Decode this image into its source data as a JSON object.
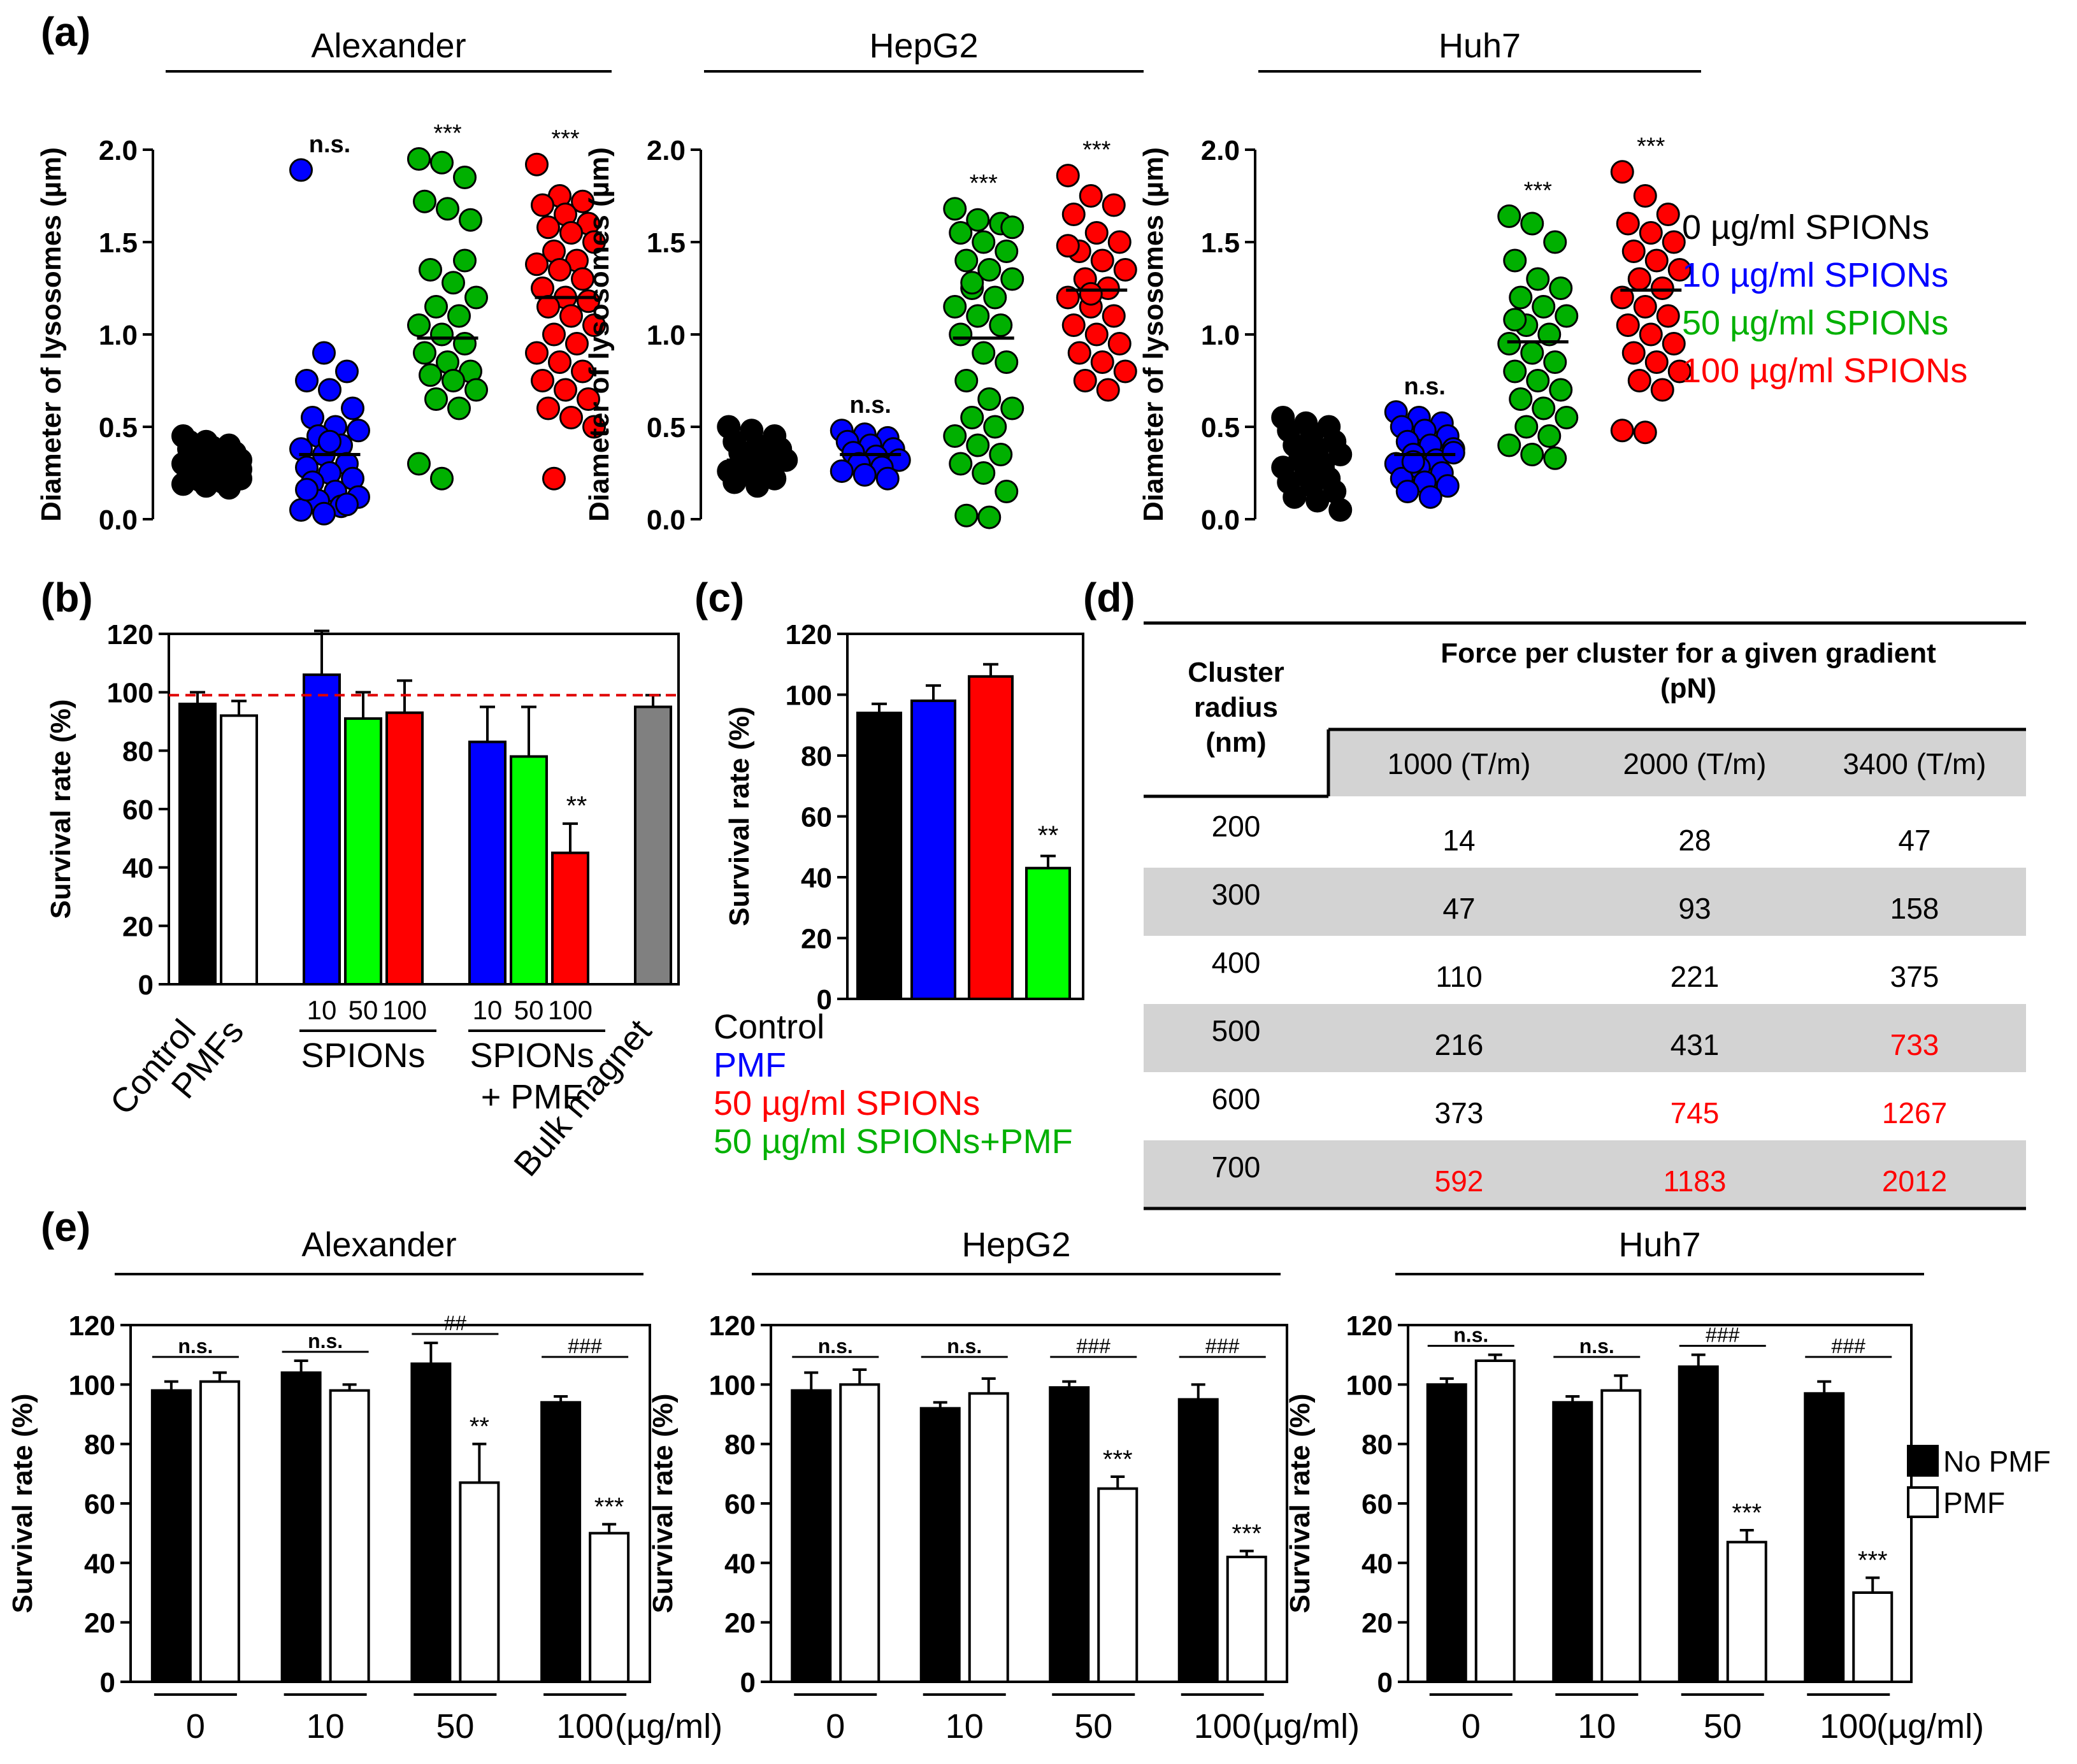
{
  "colors": {
    "c0": "#000000",
    "c10": "#0000ff",
    "c50": "#00b000",
    "c100": "#ff0000",
    "gray": "#808080",
    "green_bar": "#00ff00",
    "table_shade": "#d3d3d3"
  },
  "panel_labels": [
    "(a)",
    "(b)",
    "(c)",
    "(d)",
    "(e)"
  ],
  "chart_data": [
    {
      "id": "a",
      "type": "scatter",
      "ylabel": "Diameter of lysosomes (µm)",
      "ylim": [
        0,
        2.0
      ],
      "yticks": [
        "0.0",
        "0.5",
        "1.0",
        "1.5",
        "2.0"
      ],
      "legend": [
        "0 µg/ml SPIONs",
        "10 µg/ml SPIONs",
        "50 µg/ml SPIONs",
        "100 µg/ml SPIONs"
      ],
      "subplots": [
        {
          "title": "Alexander",
          "groups": [
            {
              "name": "0",
              "color": "#000000",
              "mean": 0.27,
              "sig": "",
              "values": [
                0.45,
                0.42,
                0.4,
                0.38,
                0.36,
                0.35,
                0.34,
                0.33,
                0.32,
                0.31,
                0.3,
                0.3,
                0.29,
                0.28,
                0.27,
                0.26,
                0.25,
                0.24,
                0.23,
                0.22,
                0.21,
                0.2,
                0.19,
                0.18,
                0.17,
                0.42,
                0.39,
                0.36,
                0.33,
                0.3,
                0.27,
                0.24
              ]
            },
            {
              "name": "10",
              "color": "#0000ff",
              "mean": 0.35,
              "sig": "n.s.",
              "values": [
                1.89,
                0.9,
                0.8,
                0.75,
                0.7,
                0.6,
                0.55,
                0.5,
                0.48,
                0.45,
                0.4,
                0.38,
                0.35,
                0.3,
                0.28,
                0.25,
                0.22,
                0.2,
                0.15,
                0.12,
                0.1,
                0.07,
                0.05,
                0.03,
                0.08,
                0.16,
                0.42
              ]
            },
            {
              "name": "50",
              "color": "#00b000",
              "mean": 0.98,
              "sig": "***",
              "values": [
                1.95,
                1.93,
                1.85,
                1.72,
                1.68,
                1.62,
                1.35,
                1.28,
                1.2,
                1.15,
                1.1,
                1.05,
                1.0,
                0.95,
                0.9,
                0.85,
                0.8,
                0.78,
                0.75,
                0.7,
                0.65,
                0.6,
                0.3,
                0.22,
                1.4
              ]
            },
            {
              "name": "100",
              "color": "#ff0000",
              "mean": 1.2,
              "sig": "***",
              "values": [
                1.92,
                1.75,
                1.72,
                1.7,
                1.65,
                1.6,
                1.58,
                1.55,
                1.5,
                1.45,
                1.4,
                1.38,
                1.35,
                1.3,
                1.25,
                1.2,
                1.18,
                1.15,
                1.1,
                1.05,
                1.0,
                0.95,
                0.9,
                0.85,
                0.8,
                0.75,
                0.7,
                0.65,
                0.6,
                0.55,
                0.5,
                0.22
              ]
            }
          ]
        },
        {
          "title": "HepG2",
          "groups": [
            {
              "name": "0",
              "color": "#000000",
              "mean": 0.32,
              "sig": "",
              "values": [
                0.5,
                0.48,
                0.45,
                0.42,
                0.4,
                0.38,
                0.36,
                0.34,
                0.32,
                0.3,
                0.28,
                0.26,
                0.24,
                0.22,
                0.2,
                0.18,
                0.35
              ]
            },
            {
              "name": "10",
              "color": "#0000ff",
              "mean": 0.35,
              "sig": "n.s.",
              "values": [
                0.48,
                0.46,
                0.44,
                0.42,
                0.4,
                0.38,
                0.36,
                0.34,
                0.32,
                0.3,
                0.28,
                0.26,
                0.24,
                0.22
              ]
            },
            {
              "name": "50",
              "color": "#00b000",
              "mean": 0.98,
              "sig": "***",
              "values": [
                1.68,
                1.62,
                1.6,
                1.55,
                1.5,
                1.45,
                1.4,
                1.35,
                1.3,
                1.25,
                1.2,
                1.15,
                1.1,
                1.05,
                1.0,
                0.9,
                0.85,
                0.75,
                0.65,
                0.6,
                0.55,
                0.5,
                0.45,
                0.4,
                0.35,
                0.3,
                0.25,
                0.15,
                0.02,
                0.01,
                1.58,
                1.28
              ]
            },
            {
              "name": "100",
              "color": "#ff0000",
              "mean": 1.24,
              "sig": "***",
              "values": [
                1.86,
                1.75,
                1.7,
                1.65,
                1.55,
                1.5,
                1.45,
                1.4,
                1.35,
                1.3,
                1.25,
                1.2,
                1.15,
                1.1,
                1.05,
                1.0,
                0.95,
                0.9,
                0.85,
                0.8,
                0.75,
                0.7,
                1.48,
                1.22
              ]
            }
          ]
        },
        {
          "title": "Huh7",
          "groups": [
            {
              "name": "0",
              "color": "#000000",
              "mean": 0.32,
              "sig": "",
              "values": [
                0.55,
                0.52,
                0.5,
                0.48,
                0.45,
                0.42,
                0.4,
                0.38,
                0.35,
                0.32,
                0.3,
                0.28,
                0.25,
                0.22,
                0.2,
                0.18,
                0.15,
                0.12,
                0.1,
                0.05,
                0.33,
                0.27
              ]
            },
            {
              "name": "10",
              "color": "#0000ff",
              "mean": 0.35,
              "sig": "n.s.",
              "values": [
                0.58,
                0.55,
                0.52,
                0.5,
                0.48,
                0.45,
                0.42,
                0.4,
                0.38,
                0.35,
                0.32,
                0.3,
                0.28,
                0.25,
                0.22,
                0.2,
                0.18,
                0.15,
                0.12,
                0.36,
                0.31
              ]
            },
            {
              "name": "50",
              "color": "#00b000",
              "mean": 0.96,
              "sig": "***",
              "values": [
                1.64,
                1.6,
                1.5,
                1.4,
                1.3,
                1.25,
                1.2,
                1.15,
                1.1,
                1.05,
                1.0,
                0.95,
                0.9,
                0.85,
                0.8,
                0.75,
                0.7,
                0.65,
                0.6,
                0.55,
                0.5,
                0.45,
                0.4,
                0.35,
                0.33,
                1.08
              ]
            },
            {
              "name": "100",
              "color": "#ff0000",
              "mean": 1.24,
              "sig": "***",
              "values": [
                1.88,
                1.75,
                1.65,
                1.6,
                1.55,
                1.5,
                1.45,
                1.4,
                1.35,
                1.3,
                1.25,
                1.2,
                1.15,
                1.1,
                1.05,
                1.0,
                0.95,
                0.9,
                0.85,
                0.8,
                0.75,
                0.7,
                0.48,
                0.47
              ]
            }
          ]
        }
      ]
    },
    {
      "id": "b",
      "type": "bar",
      "ylabel": "Survival rate (%)",
      "ylim": [
        0,
        120
      ],
      "yticks": [
        "0",
        "20",
        "40",
        "60",
        "80",
        "100",
        "120"
      ],
      "reference_line": 99,
      "bars": [
        {
          "color": "#000000",
          "value": 96,
          "err": 4,
          "sig": ""
        },
        {
          "color": "#ffffff",
          "value": 92,
          "err": 5,
          "sig": ""
        },
        {
          "color": "#0000ff",
          "value": 106,
          "err": 15,
          "sig": ""
        },
        {
          "color": "#00ff00",
          "value": 91,
          "err": 9,
          "sig": ""
        },
        {
          "color": "#ff0000",
          "value": 93,
          "err": 11,
          "sig": ""
        },
        {
          "color": "#0000ff",
          "value": 83,
          "err": 12,
          "sig": ""
        },
        {
          "color": "#00ff00",
          "value": 78,
          "err": 17,
          "sig": ""
        },
        {
          "color": "#ff0000",
          "value": 45,
          "err": 10,
          "sig": "**"
        },
        {
          "color": "#808080",
          "value": 95,
          "err": 4,
          "sig": ""
        }
      ],
      "conc_labels": [
        "10",
        "50",
        "100",
        "10",
        "50",
        "100"
      ],
      "category_labels": {
        "control": "Control",
        "pmfs": "PMFs",
        "spions": "SPIONs",
        "spions_pmf_1": "SPIONs",
        "spions_pmf_2": "+ PMF",
        "bulk": "Bulk magnet"
      }
    },
    {
      "id": "c",
      "type": "bar",
      "ylabel": "Survival rate (%)",
      "ylim": [
        0,
        120
      ],
      "yticks": [
        "0",
        "20",
        "40",
        "60",
        "80",
        "100",
        "120"
      ],
      "bars": [
        {
          "color": "#000000",
          "value": 94,
          "err": 3,
          "sig": ""
        },
        {
          "color": "#0000ff",
          "value": 98,
          "err": 5,
          "sig": ""
        },
        {
          "color": "#ff0000",
          "value": 106,
          "err": 4,
          "sig": ""
        },
        {
          "color": "#00ff00",
          "value": 43,
          "err": 4,
          "sig": "**"
        }
      ],
      "legend": [
        {
          "label": "Control",
          "color": "#000000"
        },
        {
          "label": "PMF",
          "color": "#0000ff"
        },
        {
          "label": "50 µg/ml SPIONs",
          "color": "#ff0000"
        },
        {
          "label": "50 µg/ml SPIONs+PMF",
          "color": "#00b000"
        }
      ]
    },
    {
      "id": "d",
      "type": "table",
      "header_col": [
        "Cluster",
        "radius",
        "(nm)"
      ],
      "header_main": [
        "Force per cluster for a given gradient",
        "(pN)"
      ],
      "subheaders": [
        "1000 (T/m)",
        "2000 (T/m)",
        "3400 (T/m)"
      ],
      "rows": [
        {
          "radius": "200",
          "values": [
            "14",
            "28",
            "47"
          ],
          "red": [
            false,
            false,
            false
          ],
          "shaded": false
        },
        {
          "radius": "300",
          "values": [
            "47",
            "93",
            "158"
          ],
          "red": [
            false,
            false,
            false
          ],
          "shaded": true
        },
        {
          "radius": "400",
          "values": [
            "110",
            "221",
            "375"
          ],
          "red": [
            false,
            false,
            false
          ],
          "shaded": false
        },
        {
          "radius": "500",
          "values": [
            "216",
            "431",
            "733"
          ],
          "red": [
            false,
            false,
            true
          ],
          "shaded": true
        },
        {
          "radius": "600",
          "values": [
            "373",
            "745",
            "1267"
          ],
          "red": [
            false,
            true,
            true
          ],
          "shaded": false
        },
        {
          "radius": "700",
          "values": [
            "592",
            "1183",
            "2012"
          ],
          "red": [
            true,
            true,
            true
          ],
          "shaded": true
        }
      ]
    },
    {
      "id": "e",
      "type": "bar",
      "ylabel": "Survival rate (%)",
      "ylim": [
        0,
        120
      ],
      "yticks": [
        "0",
        "20",
        "40",
        "60",
        "80",
        "100",
        "120"
      ],
      "categories": [
        "0",
        "10",
        "50",
        "100"
      ],
      "unit": "(µg/ml)",
      "legend": [
        {
          "label": "No PMF",
          "fill": "#000000"
        },
        {
          "label": "PMF",
          "fill": "#ffffff"
        }
      ],
      "subplots": [
        {
          "title": "Alexander",
          "series": [
            {
              "name": "No PMF",
              "values": [
                98,
                104,
                107,
                94
              ],
              "err": [
                3,
                4,
                7,
                2
              ]
            },
            {
              "name": "PMF",
              "values": [
                101,
                98,
                67,
                50
              ],
              "err": [
                3,
                2,
                13,
                3
              ]
            }
          ],
          "pair_sig": [
            "n.s.",
            "n.s.",
            "##",
            "###"
          ],
          "pmf_sig": [
            "",
            "",
            "**",
            "***"
          ]
        },
        {
          "title": "HepG2",
          "series": [
            {
              "name": "No PMF",
              "values": [
                98,
                92,
                99,
                95
              ],
              "err": [
                6,
                2,
                2,
                5
              ]
            },
            {
              "name": "PMF",
              "values": [
                100,
                97,
                65,
                42
              ],
              "err": [
                5,
                5,
                4,
                2
              ]
            }
          ],
          "pair_sig": [
            "n.s.",
            "n.s.",
            "###",
            "###"
          ],
          "pmf_sig": [
            "",
            "",
            "***",
            "***"
          ]
        },
        {
          "title": "Huh7",
          "series": [
            {
              "name": "No PMF",
              "values": [
                100,
                94,
                106,
                97
              ],
              "err": [
                2,
                2,
                4,
                4
              ]
            },
            {
              "name": "PMF",
              "values": [
                108,
                98,
                47,
                30
              ],
              "err": [
                2,
                5,
                4,
                5
              ]
            }
          ],
          "pair_sig": [
            "n.s.",
            "n.s.",
            "###",
            "###"
          ],
          "pmf_sig": [
            "",
            "",
            "***",
            "***"
          ]
        }
      ]
    }
  ]
}
